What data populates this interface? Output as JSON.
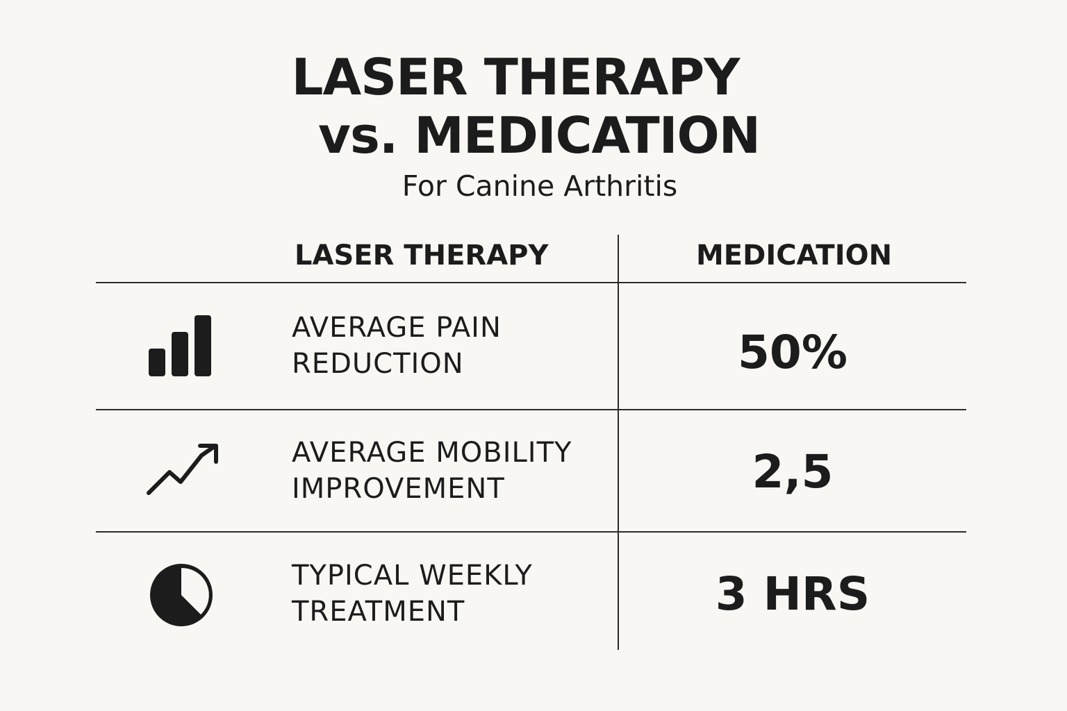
{
  "header": {
    "title_line1": "LASER THERAPY",
    "title_line2": "vs. MEDICATION",
    "subtitle": "For Canine Arthritis"
  },
  "table": {
    "columns": [
      "LASER THERAPY",
      "MEDICATION"
    ],
    "rows": [
      {
        "icon": "bar-chart-icon",
        "label_line1": "AVERAGE PAIN",
        "label_line2": "REDUCTION",
        "value": "50%"
      },
      {
        "icon": "trend-up-arrow-icon",
        "label_line1": "AVERAGE MOBILITY",
        "label_line2": "IMPROVEMENT",
        "value": "2,5"
      },
      {
        "icon": "pie-clock-icon",
        "label_line1": "TYPICAL WEEKLY",
        "label_line2": "TREATMENT",
        "value": "3 HRS"
      }
    ]
  },
  "colors": {
    "background": "#f8f7f4",
    "text": "#1c1c1c",
    "rule": "#2a2a2a"
  }
}
